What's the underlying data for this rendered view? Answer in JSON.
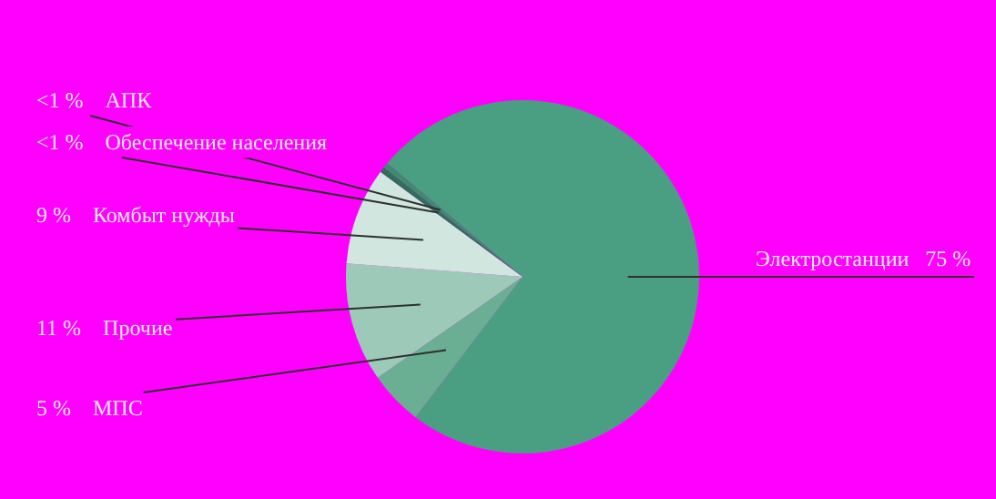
{
  "chart_data": {
    "type": "pie",
    "categories": [
      "Электростанции",
      "МПС",
      "Прочие",
      "Комбыт нужды",
      "Обеспечение населения",
      "АПК"
    ],
    "values": [
      75,
      5,
      11,
      9,
      0.5,
      0.5
    ],
    "value_labels": [
      "75 %",
      "5 %",
      "11 %",
      "9 %",
      "<1 %",
      "<1 %"
    ],
    "colors": [
      "#4a9e82",
      "#6aae94",
      "#9dcab8",
      "#d0e6de",
      "#2f6e5a",
      "#3f8a70"
    ],
    "legend": false
  }
}
